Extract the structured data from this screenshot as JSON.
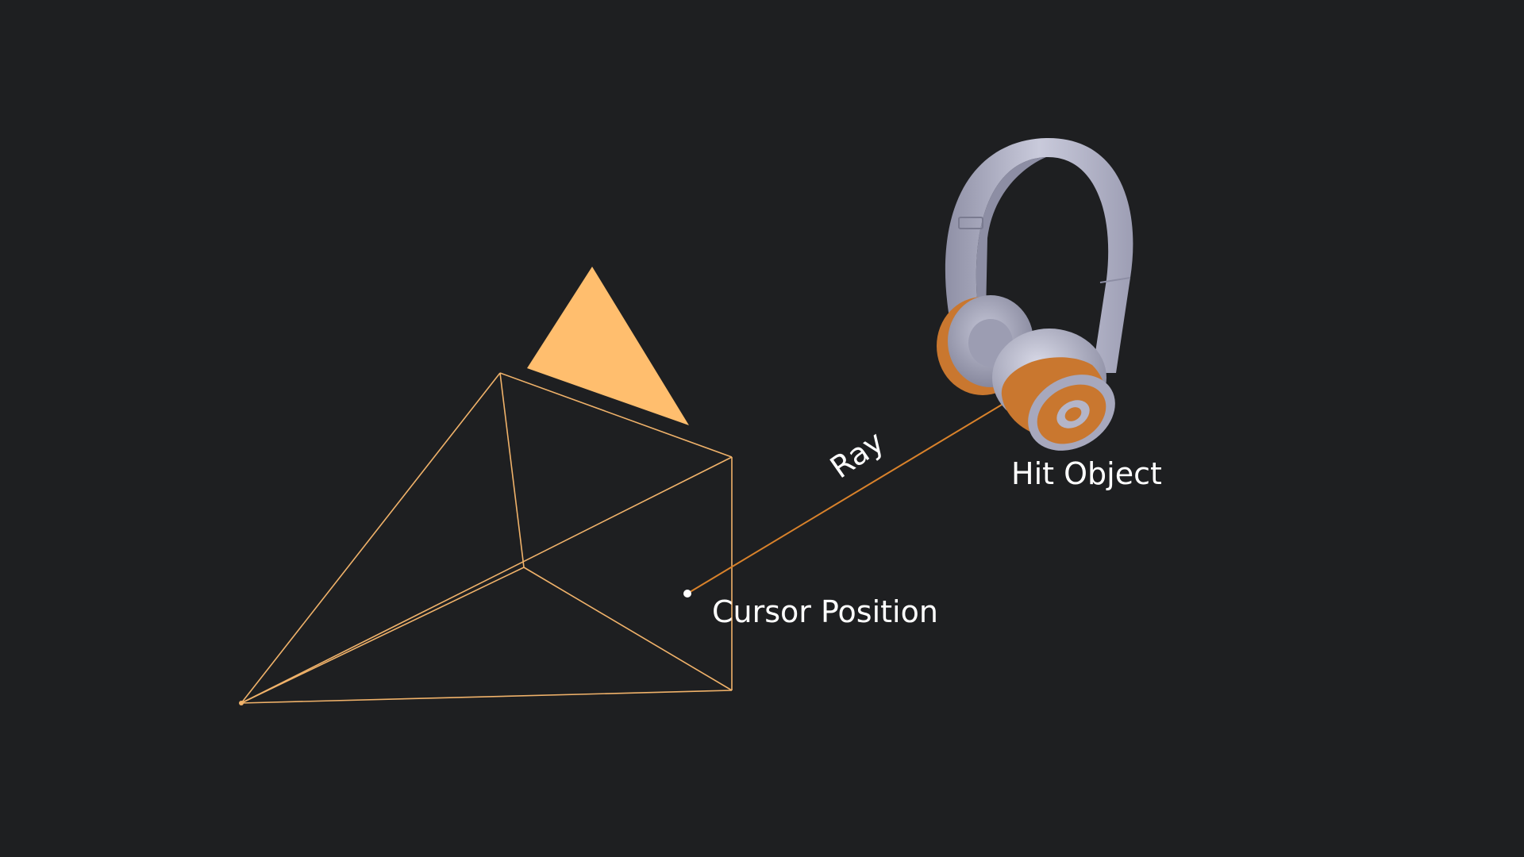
{
  "labels": {
    "ray": "Ray",
    "hit_object": "Hit Object",
    "cursor_position": "Cursor Position"
  },
  "colors": {
    "background": "#1e1f21",
    "frustum": "#f0b26a",
    "camera_up_triangle": "#ffbe6e",
    "ray": "#d9822b",
    "cursor_dot": "#ffffff",
    "headphone_body": "#b4b5c8",
    "headphone_accent": "#c9772f"
  },
  "icons": {
    "camera": "camera-frustum-icon",
    "hit_object": "headphones-icon"
  }
}
